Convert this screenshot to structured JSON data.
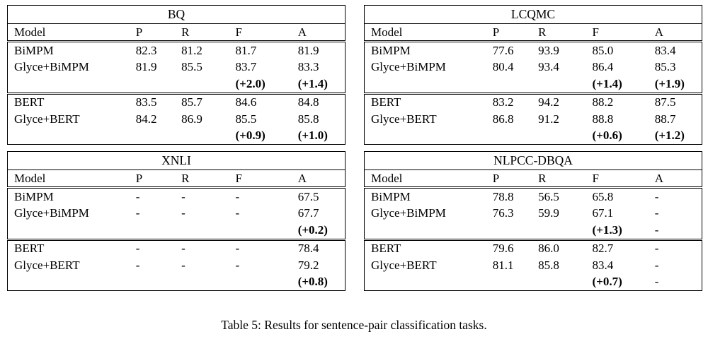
{
  "caption": "Table 5: Results for sentence-pair classification tasks.",
  "tables": [
    {
      "title": "BQ",
      "columns": [
        "Model",
        "P",
        "R",
        "F",
        "A"
      ],
      "rows": [
        [
          "BiMPM",
          "82.3",
          "81.2",
          "81.7",
          "81.9"
        ],
        [
          "Glyce+BiMPM",
          "81.9",
          "85.5",
          "83.7",
          "83.3"
        ],
        [
          "",
          "",
          "",
          "(+2.0)",
          "(+1.4)"
        ],
        [
          "BERT",
          "83.5",
          "85.7",
          "84.6",
          "84.8"
        ],
        [
          "Glyce+BERT",
          "84.2",
          "86.9",
          "85.5",
          "85.8"
        ],
        [
          "",
          "",
          "",
          "(+0.9)",
          "(+1.0)"
        ]
      ]
    },
    {
      "title": "LCQMC",
      "columns": [
        "Model",
        "P",
        "R",
        "F",
        "A"
      ],
      "rows": [
        [
          "BiMPM",
          "77.6",
          "93.9",
          "85.0",
          "83.4"
        ],
        [
          "Glyce+BiMPM",
          "80.4",
          "93.4",
          "86.4",
          "85.3"
        ],
        [
          "",
          "",
          "",
          "(+1.4)",
          "(+1.9)"
        ],
        [
          "BERT",
          "83.2",
          "94.2",
          "88.2",
          "87.5"
        ],
        [
          "Glyce+BERT",
          "86.8",
          "91.2",
          "88.8",
          "88.7"
        ],
        [
          "",
          "",
          "",
          "(+0.6)",
          "(+1.2)"
        ]
      ]
    },
    {
      "title": "XNLI",
      "columns": [
        "Model",
        "P",
        "R",
        "F",
        "A"
      ],
      "rows": [
        [
          "BiMPM",
          "-",
          "-",
          "-",
          "67.5"
        ],
        [
          "Glyce+BiMPM",
          "-",
          "-",
          "-",
          "67.7"
        ],
        [
          "",
          "",
          "",
          "",
          "(+0.2)"
        ],
        [
          "BERT",
          "-",
          "-",
          "-",
          "78.4"
        ],
        [
          "Glyce+BERT",
          "-",
          "-",
          "-",
          "79.2"
        ],
        [
          "",
          "",
          "",
          "",
          "(+0.8)"
        ]
      ]
    },
    {
      "title": "NLPCC-DBQA",
      "columns": [
        "Model",
        "P",
        "R",
        "F",
        "A"
      ],
      "rows": [
        [
          "BiMPM",
          "78.8",
          "56.5",
          "65.8",
          "-"
        ],
        [
          "Glyce+BiMPM",
          "76.3",
          "59.9",
          "67.1",
          "-"
        ],
        [
          "",
          "",
          "",
          "(+1.3)",
          "-"
        ],
        [
          "BERT",
          "79.6",
          "86.0",
          "82.7",
          "-"
        ],
        [
          "Glyce+BERT",
          "81.1",
          "85.8",
          "83.4",
          "-"
        ],
        [
          "",
          "",
          "",
          "(+0.7)",
          "-"
        ]
      ]
    }
  ]
}
